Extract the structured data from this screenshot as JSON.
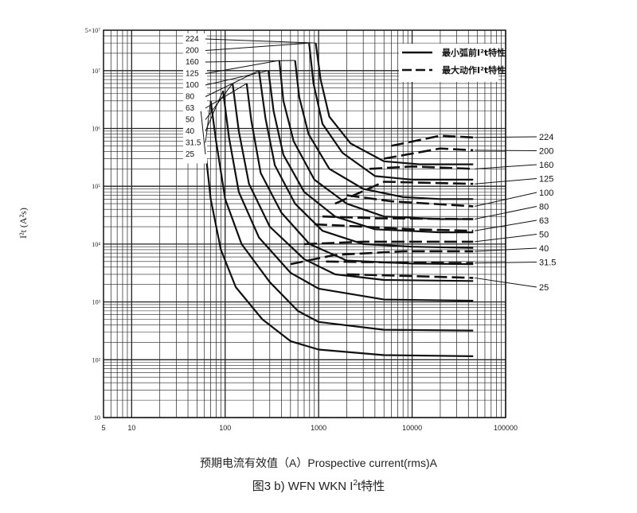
{
  "chart_data": {
    "type": "line",
    "x_scale": "log",
    "y_scale": "log",
    "xlim": [
      5,
      100000
    ],
    "ylim": [
      10,
      50000000
    ],
    "x_tick_labels": [
      "5",
      "10",
      "100",
      "1000",
      "10000",
      "100000"
    ],
    "x_ticks": [
      5,
      10,
      100,
      1000,
      10000,
      100000
    ],
    "y_tick_labels": [
      "5×10⁷",
      "10⁷",
      "10⁶",
      "10⁵",
      "10⁴",
      "10³",
      "10²",
      "10"
    ],
    "y_ticks": [
      50000000,
      10000000,
      1000000,
      100000,
      10000,
      1000,
      100,
      10
    ],
    "xlabel": "预期电流有效值（A）Prospective current(rms)A",
    "ylabel": "I²t (A²s)",
    "caption_prefix": "图3 b) WFN WKN I",
    "caption_sup": "2",
    "caption_suffix": "t特性",
    "legend": {
      "placement": "top-right",
      "entries": [
        {
          "name": "最小弧前I²t特性",
          "style": "solid"
        },
        {
          "name": "最大动作I²t特性",
          "style": "dashed"
        }
      ]
    },
    "series": [
      {
        "name": "25",
        "pre_arc": [
          [
            55,
            2000000
          ],
          [
            60,
            600000
          ],
          [
            70,
            60000
          ],
          [
            90,
            8000
          ],
          [
            130,
            1800
          ],
          [
            250,
            500
          ],
          [
            500,
            210
          ],
          [
            1000,
            150
          ],
          [
            5000,
            120
          ],
          [
            45000,
            115
          ]
        ],
        "operating": [
          [
            2000,
            3000
          ],
          [
            10000,
            2800
          ],
          [
            45000,
            2600
          ]
        ]
      },
      {
        "name": "31.5",
        "pre_arc": [
          [
            70,
            3000000
          ],
          [
            80,
            600000
          ],
          [
            100,
            60000
          ],
          [
            150,
            10000
          ],
          [
            300,
            2200
          ],
          [
            600,
            700
          ],
          [
            1000,
            450
          ],
          [
            5000,
            330
          ],
          [
            45000,
            320
          ]
        ],
        "operating": [
          [
            1200,
            5000
          ],
          [
            8000,
            4800
          ],
          [
            45000,
            4700
          ]
        ]
      },
      {
        "name": "40",
        "pre_arc": [
          [
            95,
            4500000
          ],
          [
            110,
            700000
          ],
          [
            140,
            80000
          ],
          [
            230,
            13000
          ],
          [
            500,
            3200
          ],
          [
            1000,
            1700
          ],
          [
            5000,
            1100
          ],
          [
            45000,
            1050
          ]
        ],
        "operating": [
          [
            500,
            4500
          ],
          [
            1500,
            6500
          ],
          [
            8000,
            7500
          ],
          [
            45000,
            7500
          ]
        ]
      },
      {
        "name": "50",
        "pre_arc": [
          [
            120,
            6000000
          ],
          [
            140,
            900000
          ],
          [
            180,
            110000
          ],
          [
            300,
            20000
          ],
          [
            700,
            5500
          ],
          [
            1500,
            3000
          ],
          [
            5000,
            2400
          ],
          [
            45000,
            2300
          ]
        ],
        "operating": [
          [
            700,
            10000
          ],
          [
            3000,
            11000
          ],
          [
            45000,
            11000
          ]
        ]
      },
      {
        "name": "63",
        "pre_arc": [
          [
            170,
            6000000
          ],
          [
            190,
            1400000
          ],
          [
            240,
            170000
          ],
          [
            400,
            35000
          ],
          [
            800,
            10000
          ],
          [
            2000,
            5200
          ],
          [
            10000,
            4600
          ],
          [
            45000,
            4500
          ]
        ],
        "operating": [
          [
            900,
            22000
          ],
          [
            3000,
            20000
          ],
          [
            10000,
            18000
          ],
          [
            45000,
            17000
          ]
        ]
      },
      {
        "name": "80",
        "pre_arc": [
          [
            230,
            10000000
          ],
          [
            270,
            1500000
          ],
          [
            340,
            230000
          ],
          [
            560,
            50000
          ],
          [
            1100,
            17000
          ],
          [
            3000,
            10000
          ],
          [
            10000,
            9000
          ],
          [
            45000,
            8600
          ]
        ],
        "operating": [
          [
            1100,
            30000
          ],
          [
            4000,
            28000
          ],
          [
            45000,
            27000
          ]
        ]
      },
      {
        "name": "100",
        "pre_arc": [
          [
            290,
            10000000
          ],
          [
            330,
            2000000
          ],
          [
            420,
            350000
          ],
          [
            700,
            80000
          ],
          [
            1500,
            30000
          ],
          [
            4000,
            18000
          ],
          [
            20000,
            16000
          ],
          [
            45000,
            16000
          ]
        ],
        "operating": [
          [
            2000,
            70000
          ],
          [
            6000,
            55000
          ],
          [
            45000,
            45000
          ]
        ]
      },
      {
        "name": "125",
        "pre_arc": [
          [
            380,
            15000000
          ],
          [
            420,
            3000000
          ],
          [
            540,
            600000
          ],
          [
            900,
            130000
          ],
          [
            2000,
            50000
          ],
          [
            5000,
            30000
          ],
          [
            20000,
            27000
          ],
          [
            45000,
            27000
          ]
        ],
        "operating": [
          [
            1500,
            50000
          ],
          [
            5000,
            120000
          ],
          [
            45000,
            110000
          ]
        ]
      },
      {
        "name": "160",
        "pre_arc": [
          [
            560,
            15000000
          ],
          [
            620,
            3500000
          ],
          [
            780,
            800000
          ],
          [
            1300,
            200000
          ],
          [
            3000,
            90000
          ],
          [
            8000,
            65000
          ],
          [
            20000,
            60000
          ],
          [
            45000,
            60000
          ]
        ],
        "operating": [
          [
            3500,
            200000
          ],
          [
            10000,
            220000
          ],
          [
            45000,
            200000
          ]
        ]
      },
      {
        "name": "200",
        "pre_arc": [
          [
            790,
            30000000
          ],
          [
            880,
            6000000
          ],
          [
            1100,
            1200000
          ],
          [
            1800,
            380000
          ],
          [
            4000,
            150000
          ],
          [
            10000,
            130000
          ],
          [
            45000,
            130000
          ]
        ],
        "operating": [
          [
            5000,
            300000
          ],
          [
            20000,
            450000
          ],
          [
            45000,
            420000
          ]
        ]
      },
      {
        "name": "224",
        "pre_arc": [
          [
            930,
            30000000
          ],
          [
            1050,
            7000000
          ],
          [
            1300,
            1600000
          ],
          [
            2200,
            550000
          ],
          [
            5000,
            270000
          ],
          [
            12000,
            240000
          ],
          [
            45000,
            240000
          ]
        ],
        "operating": [
          [
            6000,
            500000
          ],
          [
            20000,
            750000
          ],
          [
            45000,
            700000
          ]
        ]
      }
    ],
    "left_labels": [
      "224",
      "200",
      "160",
      "125",
      "100",
      "80",
      "63",
      "50",
      "40",
      "31.5",
      "25"
    ],
    "right_labels": [
      "224",
      "200",
      "160",
      "125",
      "100",
      "80",
      "63",
      "50",
      "40",
      "31.5",
      "25"
    ]
  }
}
